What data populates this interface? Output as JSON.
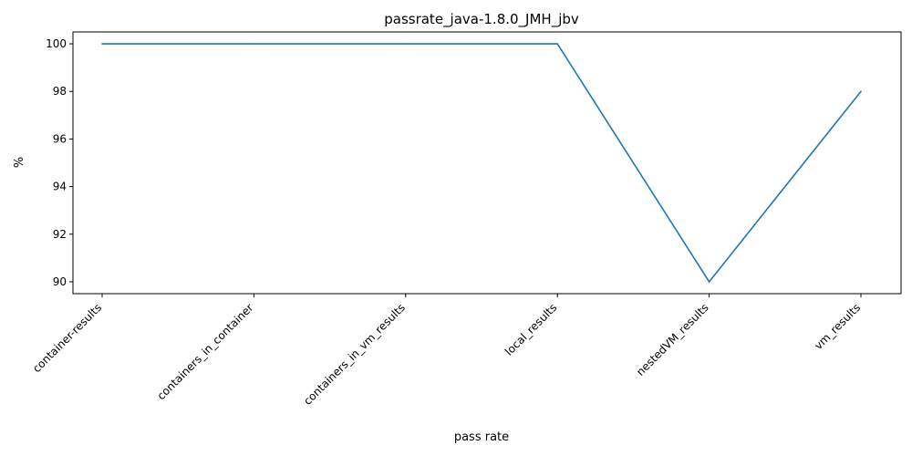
{
  "chart_data": {
    "type": "line",
    "title": "passrate_java-1.8.0_JMH_jbv",
    "xlabel": "pass rate",
    "ylabel": "%",
    "categories": [
      "container-results",
      "containers_in_container",
      "containers_in_vm_results",
      "local_results",
      "nestedVM_results",
      "vm_results"
    ],
    "series": [
      {
        "values": [
          100,
          100,
          100,
          100,
          90,
          98
        ]
      }
    ],
    "yticks": [
      90,
      92,
      94,
      96,
      98,
      100
    ],
    "ylim": [
      89.5,
      100.5
    ],
    "grid": false,
    "line_color": "#1f77b4"
  }
}
